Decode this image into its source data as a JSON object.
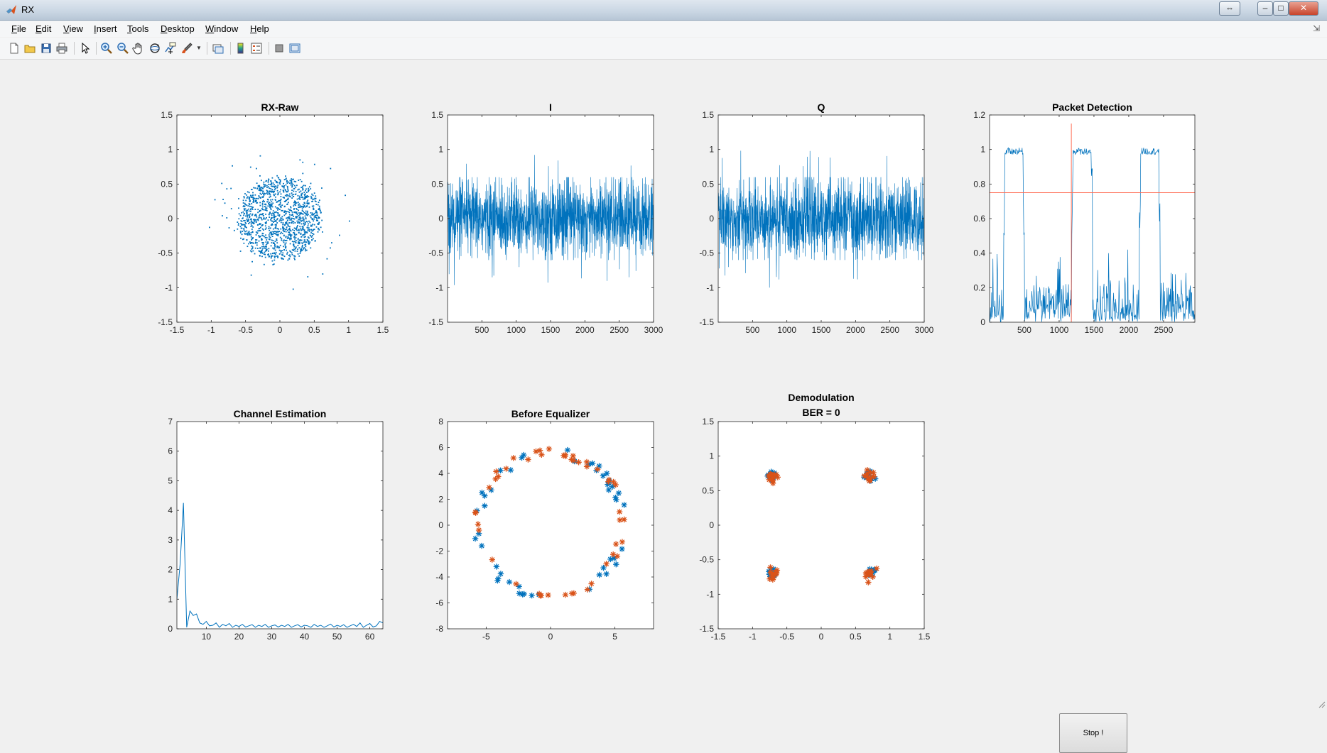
{
  "window": {
    "title": "RX",
    "controls": [
      "⇔",
      "–",
      "□",
      "✕"
    ]
  },
  "menu": [
    "File",
    "Edit",
    "View",
    "Insert",
    "Tools",
    "Desktop",
    "Window",
    "Help"
  ],
  "toolbar": {
    "icons": [
      "new-figure-icon",
      "open-file-icon",
      "save-icon",
      "print-icon",
      "select-arrow-icon",
      "zoom-in-icon",
      "zoom-out-icon",
      "pan-hand-icon",
      "rotate-3d-icon",
      "data-cursor-icon",
      "brush-icon",
      "link-plot-icon",
      "colorbar-icon",
      "legend-icon",
      "hide-plot-tools-icon",
      "show-plot-tools-icon"
    ]
  },
  "stop_button": {
    "label": "Stop !"
  },
  "colors": {
    "series1": "#0072bd",
    "series2": "#d95319",
    "threshold": "#ff6d55"
  },
  "chart_data": [
    {
      "id": "rx-raw",
      "type": "scatter",
      "title": "RX-Raw",
      "xlim": [
        -1.5,
        1.5
      ],
      "ylim": [
        -1.5,
        1.5
      ],
      "xticks": [
        "-1.5",
        "-1",
        "-0.5",
        "0",
        "0.5",
        "1",
        "1.5"
      ],
      "yticks": [
        "-1.5",
        "-1",
        "-0.5",
        "0",
        "0.5",
        "1",
        "1.5"
      ],
      "points_description_count": 2000,
      "cloud": {
        "center": [
          0,
          0
        ],
        "radius": 0.65,
        "outliers_max": 1.05
      }
    },
    {
      "id": "i-signal",
      "type": "line",
      "title": "I",
      "xlim": [
        0,
        3000
      ],
      "ylim": [
        -1.5,
        1.5
      ],
      "xticks": [
        "500",
        "1000",
        "1500",
        "2000",
        "2500",
        "3000"
      ],
      "yticks": [
        "-1.5",
        "-1",
        "-0.5",
        "0",
        "0.5",
        "1",
        "1.5"
      ],
      "samples": 3000,
      "amplitude": 0.6,
      "peaks": [
        0.95,
        -1.05
      ]
    },
    {
      "id": "q-signal",
      "type": "line",
      "title": "Q",
      "xlim": [
        0,
        3000
      ],
      "ylim": [
        -1.5,
        1.5
      ],
      "xticks": [
        "500",
        "1000",
        "1500",
        "2000",
        "2500",
        "3000"
      ],
      "yticks": [
        "-1.5",
        "-1",
        "-0.5",
        "0",
        "0.5",
        "1",
        "1.5"
      ],
      "samples": 3000,
      "amplitude": 0.6,
      "peaks": [
        1.05,
        -1.05
      ]
    },
    {
      "id": "packet-detection",
      "type": "line",
      "title": "Packet Detection",
      "xlim": [
        0,
        2950
      ],
      "ylim": [
        0,
        1.2
      ],
      "xticks": [
        "500",
        "1000",
        "1500",
        "2000",
        "2500"
      ],
      "yticks": [
        "0",
        "0.2",
        "0.4",
        "0.6",
        "0.8",
        "1",
        "1.2"
      ],
      "plateaus": [
        [
          220,
          480
        ],
        [
          1200,
          1460
        ],
        [
          2170,
          2430
        ]
      ],
      "threshold": 0.75,
      "marker_x": 1175,
      "marker_top": 1.15
    },
    {
      "id": "channel-estimation",
      "type": "line",
      "title": "Channel Estimation",
      "xlim": [
        1,
        64
      ],
      "ylim": [
        0,
        7
      ],
      "xticks": [
        "10",
        "20",
        "30",
        "40",
        "50",
        "60"
      ],
      "yticks": [
        "0",
        "1",
        "2",
        "3",
        "4",
        "5",
        "6",
        "7"
      ],
      "values": [
        1.0,
        2.2,
        4.25,
        0.05,
        0.6,
        0.45,
        0.5,
        0.2,
        0.15,
        0.25,
        0.1,
        0.12,
        0.2,
        0.05,
        0.15,
        0.1,
        0.18,
        0.05,
        0.12,
        0.08,
        0.15,
        0.06,
        0.1,
        0.14,
        0.05,
        0.12,
        0.08,
        0.15,
        0.05,
        0.1,
        0.13,
        0.06,
        0.12,
        0.08,
        0.15,
        0.05,
        0.1,
        0.14,
        0.06,
        0.12,
        0.1,
        0.05,
        0.15,
        0.08,
        0.12,
        0.05,
        0.1,
        0.16,
        0.06,
        0.12,
        0.08,
        0.14,
        0.05,
        0.1,
        0.15,
        0.08,
        0.2,
        0.05,
        0.12,
        0.18,
        0.06,
        0.1,
        0.25,
        0.2
      ]
    },
    {
      "id": "before-equalizer",
      "type": "scatter",
      "title": "Before Equalizer",
      "xlim": [
        -8,
        8
      ],
      "ylim": [
        -8,
        8
      ],
      "xticks": [
        "-5",
        "0",
        "5"
      ],
      "yticks": [
        "-8",
        "-6",
        "-4",
        "-2",
        "0",
        "2",
        "4",
        "6",
        "8"
      ],
      "ring_radius": 5.6,
      "points_per_series": 48
    },
    {
      "id": "demodulation",
      "type": "scatter",
      "title": "Demodulation",
      "subtitle": "BER = 0",
      "xlim": [
        -1.5,
        1.5
      ],
      "ylim": [
        -1.5,
        1.5
      ],
      "xticks": [
        "-1.5",
        "-1",
        "-0.5",
        "0",
        "0.5",
        "1",
        "1.5"
      ],
      "yticks": [
        "-1.5",
        "-1",
        "-0.5",
        "0",
        "0.5",
        "1",
        "1.5"
      ],
      "constellation": [
        [
          -0.707,
          0.707
        ],
        [
          0.707,
          0.707
        ],
        [
          -0.707,
          -0.707
        ],
        [
          0.707,
          -0.707
        ]
      ],
      "points_per_cluster": 12
    }
  ]
}
